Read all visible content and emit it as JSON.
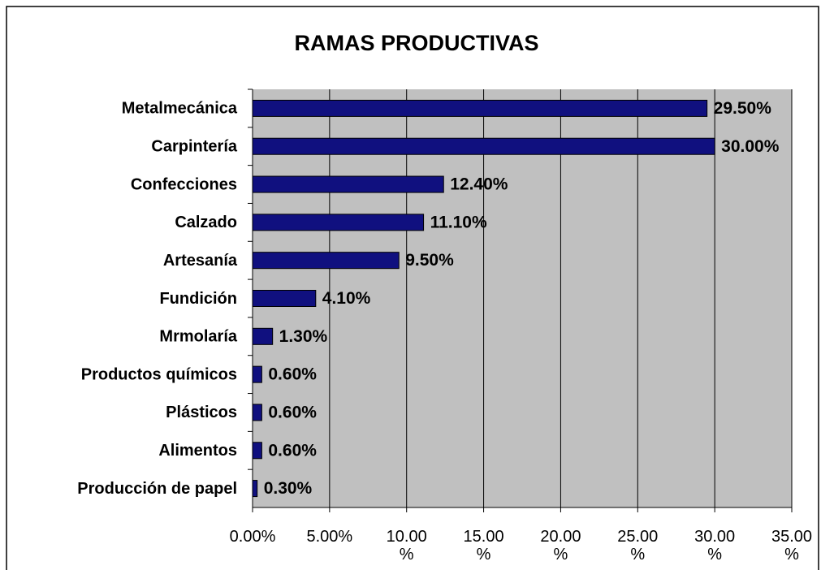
{
  "chart_data": {
    "type": "bar",
    "orientation": "horizontal",
    "title": "RAMAS PRODUCTIVAS",
    "categories": [
      "Metalmecánica",
      "Carpintería",
      "Confecciones",
      "Calzado",
      "Artesanía",
      "Fundición",
      "Mrmolaría",
      "Productos químicos",
      "Plásticos",
      "Alimentos",
      "Producción de papel"
    ],
    "values": [
      29.5,
      30,
      12.4,
      11.1,
      9.5,
      4.1,
      1.3,
      0.6,
      0.6,
      0.6,
      0.3
    ],
    "value_labels": [
      "29.50%",
      "30.00%",
      "12.40%",
      "11.10%",
      "9.50%",
      "4.10%",
      "1.30%",
      "0.60%",
      "0.60%",
      "0.60%",
      "0.30%"
    ],
    "color": "#10107f",
    "xlim": [
      0,
      35
    ],
    "xticks": [
      {
        "value": 0,
        "label": "0.00%"
      },
      {
        "value": 5,
        "label": "5.00%"
      },
      {
        "value": 10,
        "label": "10.00%"
      },
      {
        "value": 15,
        "label": "15.00%"
      },
      {
        "value": 20,
        "label": "20.00%"
      },
      {
        "value": 25,
        "label": "25.00%"
      },
      {
        "value": 30,
        "label": "30.00%"
      },
      {
        "value": 35,
        "label": "35.00%"
      }
    ],
    "grid": true
  }
}
